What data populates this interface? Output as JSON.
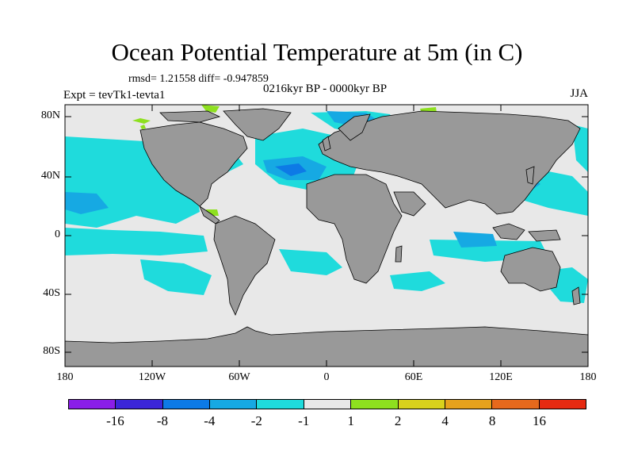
{
  "plot": {
    "title": "Ocean Potential Temperature at 5m (in C)",
    "stats": "rmsd= 1.21558 diff= -0.947859",
    "period": "0216kyr BP - 0000kyr BP",
    "expt": "Expt = tevTk1-tevta1",
    "season": "JJA"
  },
  "axes": {
    "lat_labels": [
      "80N",
      "40N",
      "0",
      "40S",
      "80S"
    ],
    "lon_labels": [
      "180",
      "120W",
      "60W",
      "0",
      "60E",
      "120E",
      "180"
    ]
  },
  "colorbar": {
    "colors": [
      "#8a1ee8",
      "#3b26d9",
      "#0d7ae6",
      "#16a9e3",
      "#1fdbdc",
      "#e8e8e8",
      "#8ee01f",
      "#d9d21c",
      "#e6a21c",
      "#e6691c",
      "#e62a12"
    ],
    "labels": [
      "-16",
      "-8",
      "-4",
      "-2",
      "-1",
      "1",
      "2",
      "4",
      "8",
      "16"
    ]
  },
  "map_colors": {
    "land": "#999999",
    "background": "#e8e8e8"
  }
}
